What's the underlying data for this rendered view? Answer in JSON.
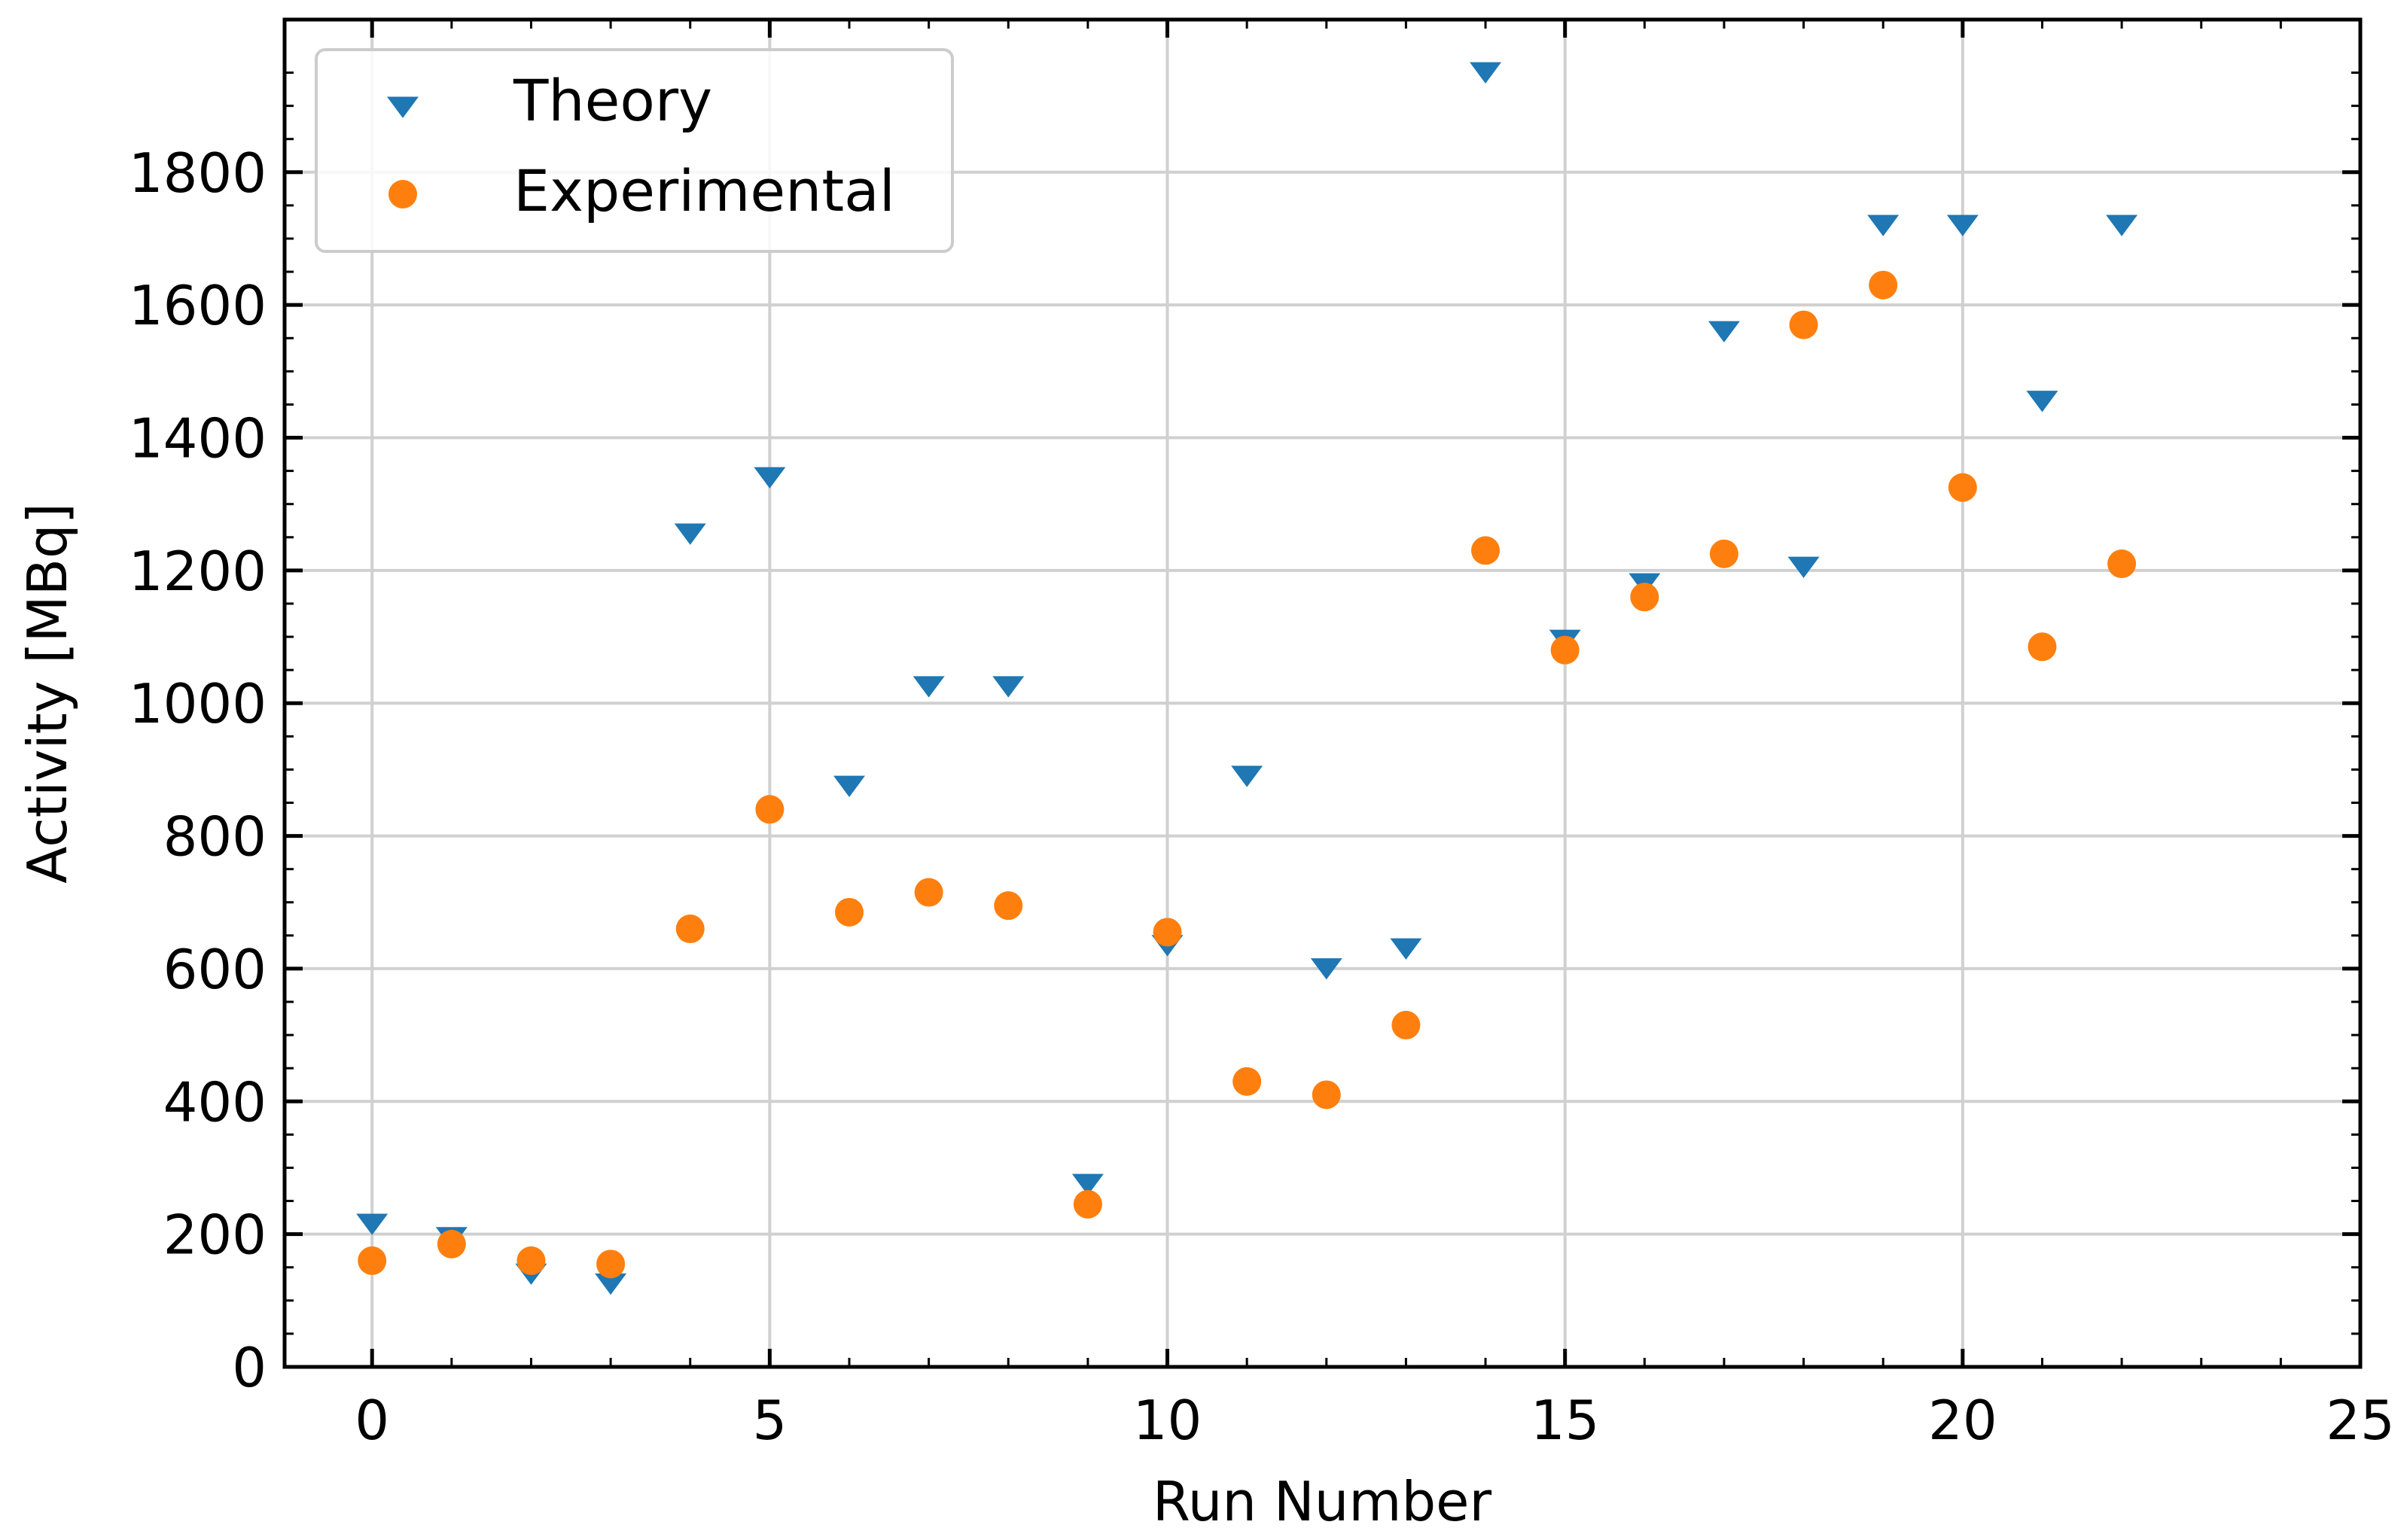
{
  "chart_data": {
    "type": "scatter",
    "title": "",
    "xlabel": "Run Number",
    "ylabel": "Activity [MBq]",
    "xlim": [
      -1.1,
      25
    ],
    "ylim": [
      0,
      2030
    ],
    "xticks": [
      0,
      5,
      10,
      15,
      20,
      25
    ],
    "yticks": [
      0,
      200,
      400,
      600,
      800,
      1000,
      1200,
      1400,
      1600,
      1800
    ],
    "grid": true,
    "legend_position": "top-left",
    "series": [
      {
        "name": "Theory",
        "marker": "triangle-down",
        "color": "#1f77b4",
        "x": [
          0,
          1,
          2,
          3,
          4,
          5,
          6,
          7,
          8,
          9,
          10,
          11,
          12,
          13,
          14,
          15,
          16,
          17,
          18,
          19,
          20,
          21,
          22
        ],
        "y": [
          220,
          200,
          145,
          130,
          1260,
          1345,
          880,
          1030,
          1030,
          280,
          640,
          895,
          605,
          635,
          1955,
          1100,
          1185,
          1565,
          1210,
          1725,
          1725,
          1460,
          1725
        ]
      },
      {
        "name": "Experimental",
        "marker": "circle",
        "color": "#ff7f0e",
        "x": [
          0,
          1,
          2,
          3,
          4,
          5,
          6,
          7,
          8,
          9,
          10,
          11,
          12,
          13,
          14,
          15,
          16,
          17,
          18,
          19,
          20,
          21,
          22
        ],
        "y": [
          160,
          185,
          160,
          155,
          660,
          840,
          685,
          715,
          695,
          245,
          655,
          430,
          410,
          515,
          1230,
          1080,
          1160,
          1225,
          1570,
          1630,
          1325,
          1085,
          1210
        ]
      }
    ]
  }
}
